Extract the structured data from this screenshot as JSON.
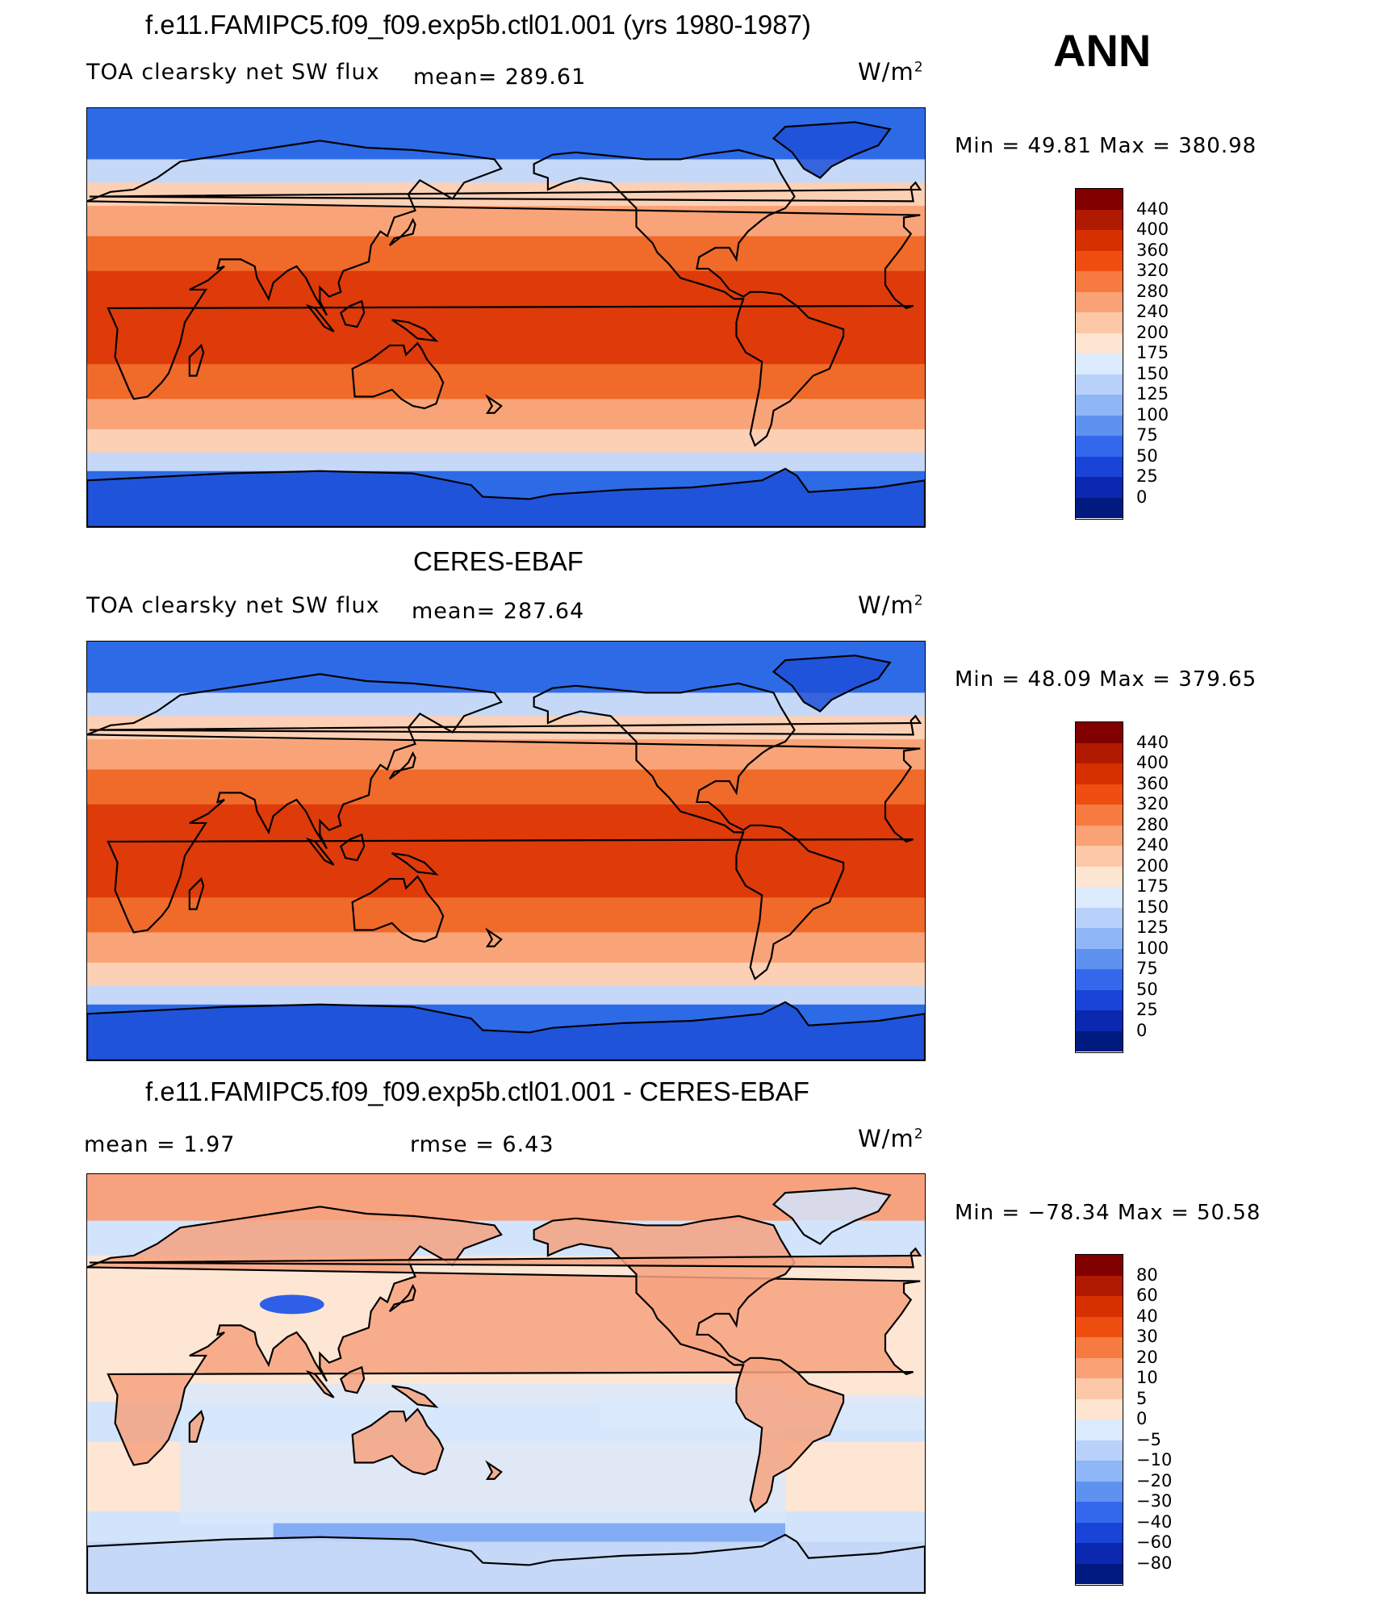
{
  "season": "ANN",
  "panels": [
    {
      "id": "model",
      "title": "f.e11.FAMIPC5.f09_f09.exp5b.ctl01.001 (yrs 1980-1987)",
      "variable": "TOA clearsky net SW flux",
      "stat_text": "mean=  289.61",
      "stat2_text": "",
      "units_base": "W/m",
      "units_exp": "2",
      "minmax": "Min  =    49.81  Max  =  380.98",
      "colorbar_labels": [
        "440",
        "400",
        "360",
        "320",
        "280",
        "240",
        "200",
        "175",
        "150",
        "125",
        "100",
        "75",
        "50",
        "25",
        "0"
      ],
      "colorbar_colors": [
        "#800000",
        "#b01a00",
        "#d63000",
        "#ee4e10",
        "#f77a40",
        "#faa175",
        "#fcc8a8",
        "#fee5d2",
        "#dbeafc",
        "#b7d1fa",
        "#8fb6f7",
        "#5f92f0",
        "#3468ec",
        "#1a44d8",
        "#0a28b0",
        "#001a80"
      ]
    },
    {
      "id": "obs",
      "title": "CERES-EBAF",
      "variable": "TOA clearsky net SW flux",
      "stat_text": "mean=  287.64",
      "stat2_text": "",
      "units_base": "W/m",
      "units_exp": "2",
      "minmax": "Min  =    48.09  Max  =  379.65",
      "colorbar_labels": [
        "440",
        "400",
        "360",
        "320",
        "280",
        "240",
        "200",
        "175",
        "150",
        "125",
        "100",
        "75",
        "50",
        "25",
        "0"
      ],
      "colorbar_colors": [
        "#800000",
        "#b01a00",
        "#d63000",
        "#ee4e10",
        "#f77a40",
        "#faa175",
        "#fcc8a8",
        "#fee5d2",
        "#dbeafc",
        "#b7d1fa",
        "#8fb6f7",
        "#5f92f0",
        "#3468ec",
        "#1a44d8",
        "#0a28b0",
        "#001a80"
      ]
    },
    {
      "id": "diff",
      "title": "f.e11.FAMIPC5.f09_f09.exp5b.ctl01.001 - CERES-EBAF",
      "variable": "",
      "stat_text": "mean  =      1.97",
      "stat2_text": "rmse  =      6.43",
      "units_base": "W/m",
      "units_exp": "2",
      "minmax": "Min  = −78.34  Max  =    50.58",
      "colorbar_labels": [
        "80",
        "60",
        "40",
        "30",
        "20",
        "10",
        "5",
        "0",
        "−5",
        "−10",
        "−20",
        "−30",
        "−40",
        "−60",
        "−80"
      ],
      "colorbar_colors": [
        "#800000",
        "#b01a00",
        "#d63000",
        "#ee4e10",
        "#f77a40",
        "#faa175",
        "#fcc8a8",
        "#fee5d2",
        "#dbeafc",
        "#b7d1fa",
        "#8fb6f7",
        "#5f92f0",
        "#3468ec",
        "#1a44d8",
        "#0a28b0",
        "#001a80"
      ]
    }
  ],
  "colors": {
    "tropics": "#de3a0a",
    "subtropics": "#f06a2a",
    "midlat": "#f9a478",
    "highlat": "#fcd0b4",
    "polar_light": "#c5d8f8",
    "polar": "#2d6ae6",
    "ice_sheet": "#1d4fd6",
    "diff_ocean": "#fde6d4",
    "diff_cool": "#d2e4fb",
    "diff_land": "#f6a27f",
    "coastline": "#000000"
  }
}
